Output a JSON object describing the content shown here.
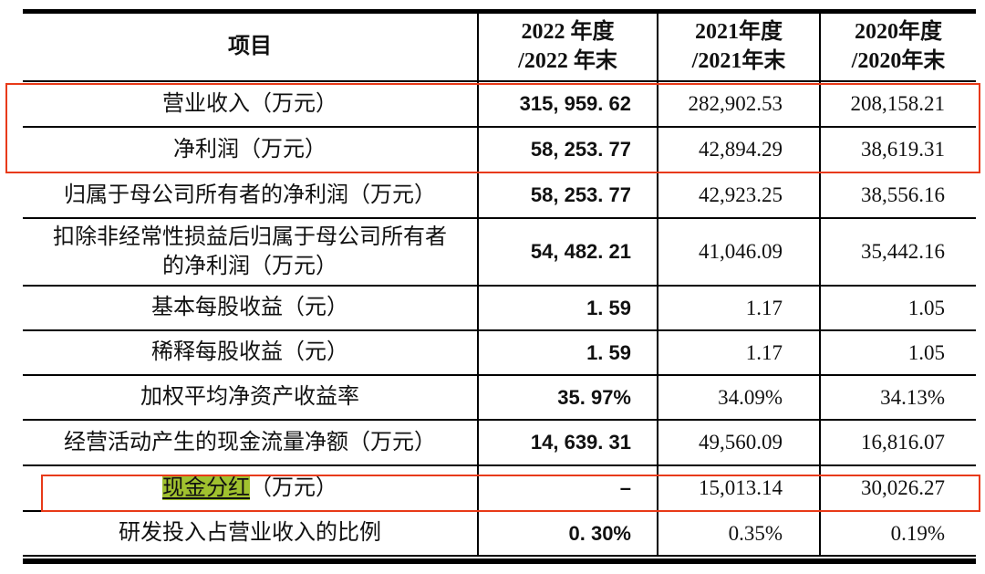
{
  "colors": {
    "annotation_red": "#e83a18",
    "highlight_green": "#a0c12f",
    "line_black": "#000000"
  },
  "table": {
    "header": {
      "col_item": "项目",
      "col_2022": "2022 年度\n/2022 年末",
      "col_2021": "2021年度\n/2021年末",
      "col_2020": "2020年度\n/2020年末"
    },
    "rows": [
      {
        "label": "营业收入（万元）",
        "y2022": "315, 959. 62",
        "y2021": "282,902.53",
        "y2020": "208,158.21"
      },
      {
        "label": "净利润（万元）",
        "y2022": "58, 253. 77",
        "y2021": "42,894.29",
        "y2020": "38,619.31"
      },
      {
        "label": "归属于母公司所有者的净利润（万元）",
        "y2022": "58, 253. 77",
        "y2021": "42,923.25",
        "y2020": "38,556.16"
      },
      {
        "label": "扣除非经常性损益后归属于母公司所有者\n的净利润（万元）",
        "y2022": "54, 482. 21",
        "y2021": "41,046.09",
        "y2020": "35,442.16"
      },
      {
        "label": "基本每股收益（元）",
        "y2022": "1. 59",
        "y2021": "1.17",
        "y2020": "1.05"
      },
      {
        "label": "稀释每股收益（元）",
        "y2022": "1. 59",
        "y2021": "1.17",
        "y2020": "1.05"
      },
      {
        "label": "加权平均净资产收益率",
        "y2022": "35. 97%",
        "y2021": "34.09%",
        "y2020": "34.13%"
      },
      {
        "label": "经营活动产生的现金流量净额（万元）",
        "y2022": "14, 639. 31",
        "y2021": "49,560.09",
        "y2020": "16,816.07"
      },
      {
        "label_highlight": "现金分红",
        "label_rest": "（万元）",
        "y2022": "–",
        "y2021": "15,013.14",
        "y2020": "30,026.27"
      },
      {
        "label": "研发投入占营业收入的比例",
        "y2022": "0. 30%",
        "y2021": "0.35%",
        "y2020": "0.19%"
      }
    ]
  }
}
